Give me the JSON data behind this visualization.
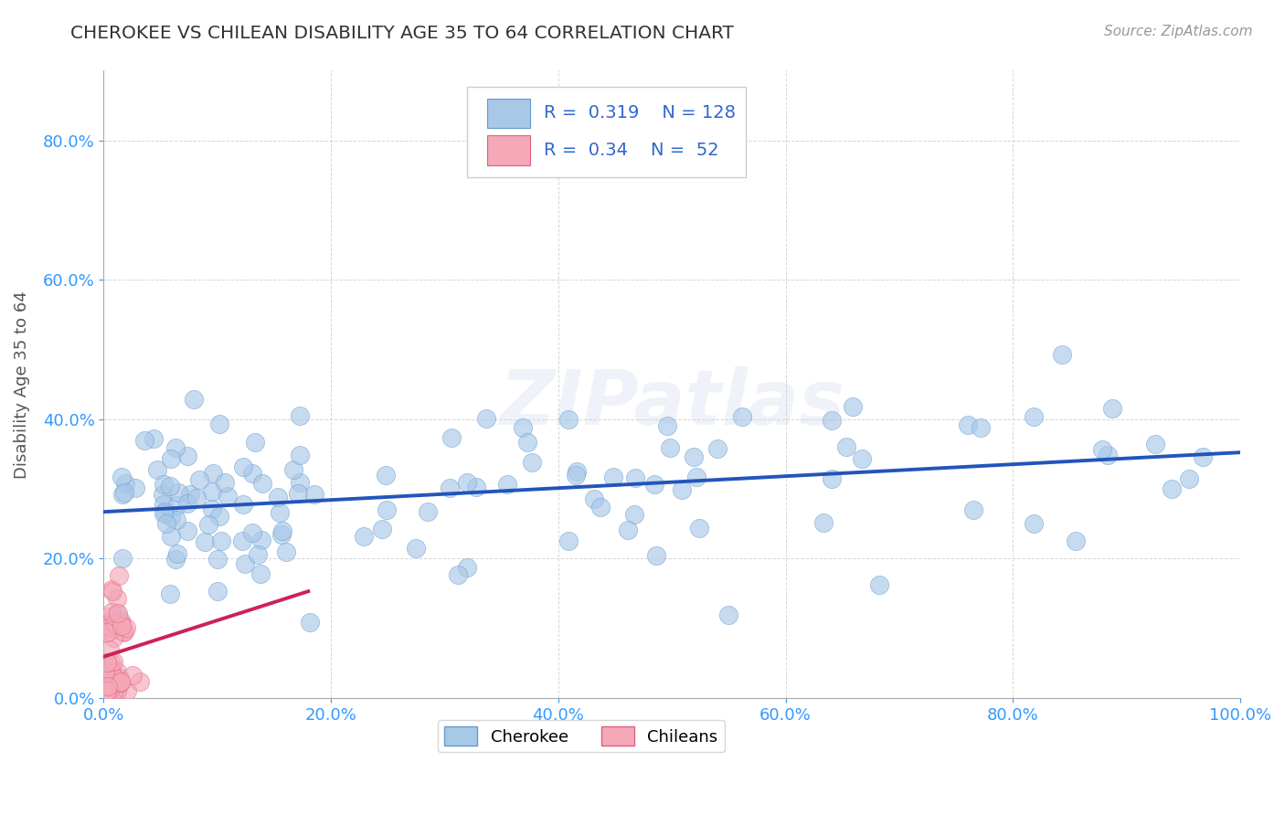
{
  "title": "CHEROKEE VS CHILEAN DISABILITY AGE 35 TO 64 CORRELATION CHART",
  "source_text": "Source: ZipAtlas.com",
  "ylabel": "Disability Age 35 to 64",
  "xlim": [
    0.0,
    1.0
  ],
  "ylim": [
    0.0,
    0.9
  ],
  "xticks": [
    0.0,
    0.2,
    0.4,
    0.6,
    0.8,
    1.0
  ],
  "xticklabels": [
    "0.0%",
    "20.0%",
    "40.0%",
    "60.0%",
    "80.0%",
    "100.0%"
  ],
  "yticks": [
    0.0,
    0.2,
    0.4,
    0.6,
    0.8
  ],
  "yticklabels": [
    "0.0%",
    "20.0%",
    "40.0%",
    "60.0%",
    "80.0%"
  ],
  "cherokee_color": "#a8c8e8",
  "chilean_color": "#f4a8b8",
  "cherokee_edge": "#6699cc",
  "chilean_edge": "#e06080",
  "trend_cherokee_color": "#2255bb",
  "trend_chilean_color": "#cc2255",
  "trend_dashed_color": "#bbccdd",
  "R_cherokee": 0.319,
  "N_cherokee": 128,
  "R_chilean": 0.34,
  "N_chilean": 52,
  "watermark": "ZIPatlas",
  "legend_entries": [
    "Cherokee",
    "Chileans"
  ],
  "background_color": "#ffffff",
  "grid_color": "#cccccc",
  "title_color": "#333333",
  "axis_label_color": "#555555",
  "tick_color": "#3399ff",
  "stat_color": "#3366cc",
  "source_color": "#999999"
}
